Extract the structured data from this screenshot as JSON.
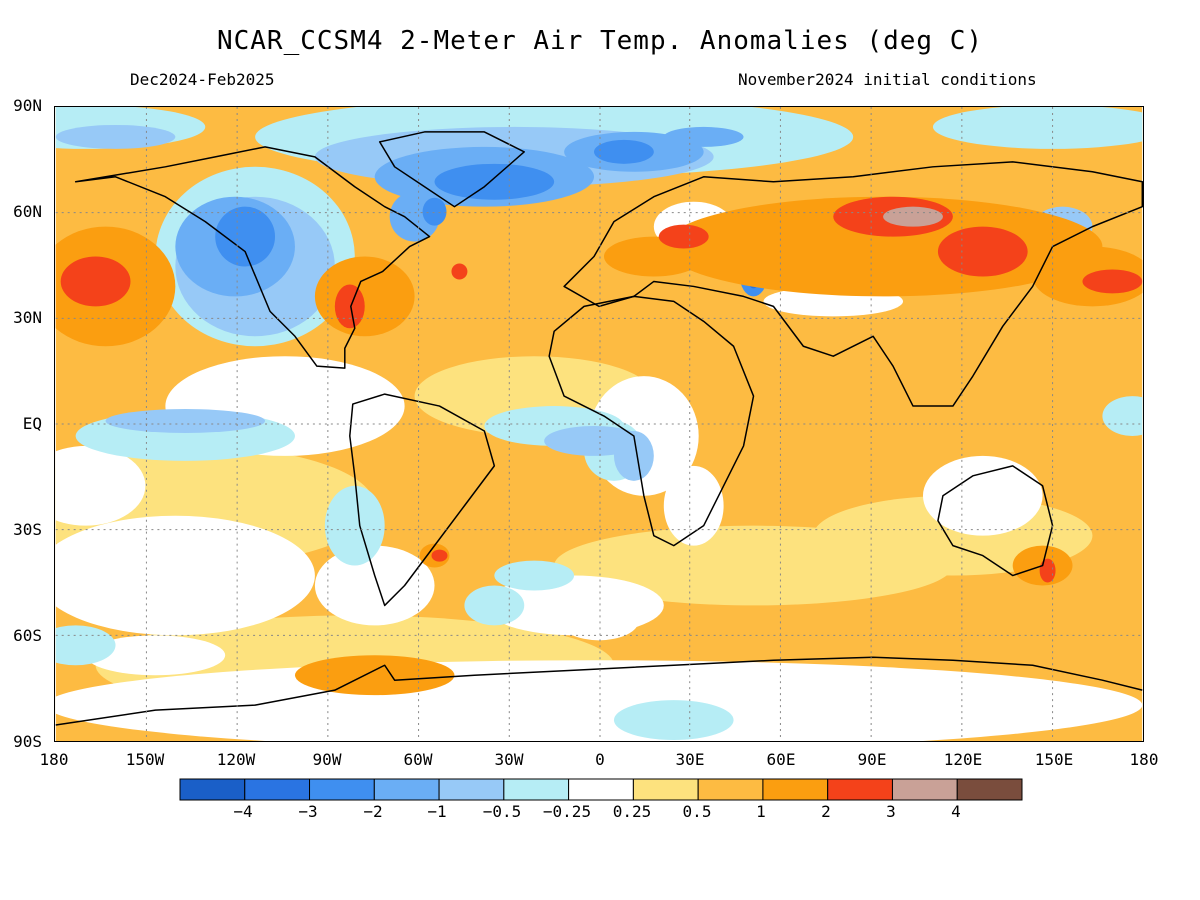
{
  "title": "NCAR_CCSM4 2-Meter Air Temp. Anomalies (deg C)",
  "subtitle_left": "Dec2024-Feb2025",
  "subtitle_right": "November2024 initial conditions",
  "lat_labels": [
    "90N",
    "60N",
    "30N",
    "EQ",
    "30S",
    "60S",
    "90S"
  ],
  "lon_labels": [
    "180",
    "150W",
    "120W",
    "90W",
    "60W",
    "30W",
    "0",
    "30E",
    "60E",
    "90E",
    "120E",
    "150E",
    "180"
  ],
  "colorbar": {
    "colors": [
      "#1a5fc8",
      "#2a74e2",
      "#3f8ff0",
      "#6aaef5",
      "#97c9f7",
      "#b6edf5",
      "#ffffff",
      "#fde27e",
      "#fdbb42",
      "#fb9e10",
      "#f4421a",
      "#c9a197",
      "#7a4d3d"
    ],
    "labels": [
      "−4",
      "−3",
      "−2",
      "−1",
      "−0.5",
      "−0.25",
      "0.25",
      "0.5",
      "1",
      "2",
      "3",
      "4"
    ]
  },
  "palette": {
    "cold4": "#1a5fc8",
    "cold3": "#2a74e2",
    "cold2": "#3f8ff0",
    "cold1": "#6aaef5",
    "cool05": "#97c9f7",
    "cool025": "#b6edf5",
    "neutral": "#ffffff",
    "warm025": "#fde27e",
    "warm05": "#fdbb42",
    "warm1": "#fb9e10",
    "warm2": "#f4421a",
    "warm3": "#c9a197",
    "warm4": "#7a4d3d"
  }
}
